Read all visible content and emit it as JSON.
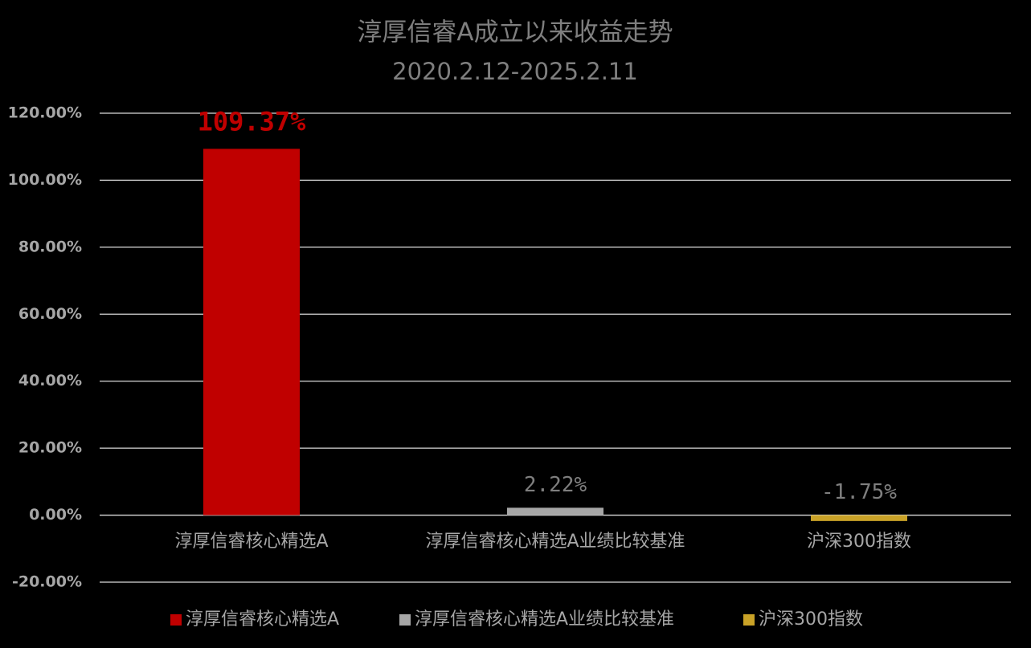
{
  "chart_data": {
    "type": "bar",
    "title": "淳厚信睿A成立以来收益走势",
    "subtitle": "2020.2.12-2025.2.11",
    "categories": [
      "淳厚信睿核心精选A",
      "淳厚信睿核心精选A业绩比较基准",
      "沪深300指数"
    ],
    "values": [
      109.37,
      2.22,
      -1.75
    ],
    "value_labels": [
      "109.37%",
      "2.22%",
      "-1.75%"
    ],
    "colors": [
      "#c00000",
      "#a6a6a6",
      "#c9a227"
    ],
    "label_colors": [
      "#c00000",
      "#7f7f7f",
      "#7f7f7f"
    ],
    "ylim": [
      -20,
      120
    ],
    "yticks": [
      {
        "value": -20,
        "label": "-20.00%"
      },
      {
        "value": 0,
        "label": "0.00%"
      },
      {
        "value": 20,
        "label": "20.00%"
      },
      {
        "value": 40,
        "label": "40.00%"
      },
      {
        "value": 60,
        "label": "60.00%"
      },
      {
        "value": 80,
        "label": "80.00%"
      },
      {
        "value": 100,
        "label": "100.00%"
      },
      {
        "value": 120,
        "label": "120.00%"
      }
    ],
    "grid": true,
    "legend": "bottom"
  }
}
